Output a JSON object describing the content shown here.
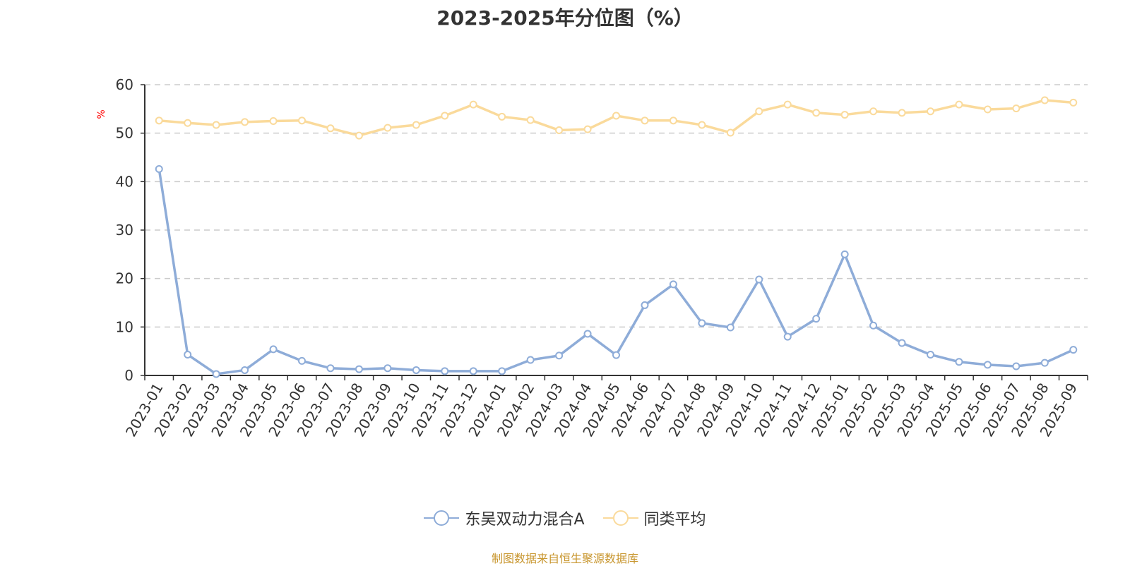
{
  "chart_data": {
    "type": "line",
    "title": "2023-2025年分位图（%）",
    "ylabel": "%",
    "xlabel": "",
    "ylim": [
      0,
      60
    ],
    "yticks": [
      0,
      10,
      20,
      30,
      40,
      50,
      60
    ],
    "grid": true,
    "legend_position": "bottom-center",
    "categories": [
      "2023-01",
      "2023-02",
      "2023-03",
      "2023-04",
      "2023-05",
      "2023-06",
      "2023-07",
      "2023-08",
      "2023-09",
      "2023-10",
      "2023-11",
      "2023-12",
      "2024-01",
      "2024-02",
      "2024-03",
      "2024-04",
      "2024-05",
      "2024-06",
      "2024-07",
      "2024-08",
      "2024-09",
      "2024-10",
      "2024-11",
      "2024-12",
      "2025-01",
      "2025-02",
      "2025-03",
      "2025-04",
      "2025-05",
      "2025-06",
      "2025-07",
      "2025-08",
      "2025-09"
    ],
    "series": [
      {
        "name": "东吴双动力混合A",
        "color": "#8EACD8",
        "values": [
          42.6,
          4.3,
          0.3,
          1.1,
          5.4,
          3.0,
          1.5,
          1.3,
          1.5,
          1.1,
          0.9,
          0.9,
          0.9,
          3.2,
          4.1,
          8.6,
          4.2,
          14.5,
          18.8,
          10.8,
          9.9,
          19.8,
          8.0,
          11.7,
          25.0,
          10.3,
          6.7,
          4.3,
          2.8,
          2.2,
          1.9,
          2.6,
          5.3
        ]
      },
      {
        "name": "同类平均",
        "color": "#FADA9B",
        "values": [
          52.6,
          52.1,
          51.7,
          52.3,
          52.5,
          52.6,
          51.0,
          49.5,
          51.1,
          51.7,
          53.6,
          55.9,
          53.4,
          52.7,
          50.6,
          50.8,
          53.6,
          52.6,
          52.6,
          51.7,
          50.1,
          54.5,
          55.9,
          54.2,
          53.8,
          54.5,
          54.2,
          54.5,
          55.9,
          54.9,
          55.1,
          56.8,
          56.3
        ]
      }
    ]
  },
  "source": {
    "text": "制图数据来自恒生聚源数据库",
    "color": "#C8962E"
  },
  "colors": {
    "axis": "#333333",
    "grid": "#CCCCCC",
    "unit": "#FF0000"
  }
}
